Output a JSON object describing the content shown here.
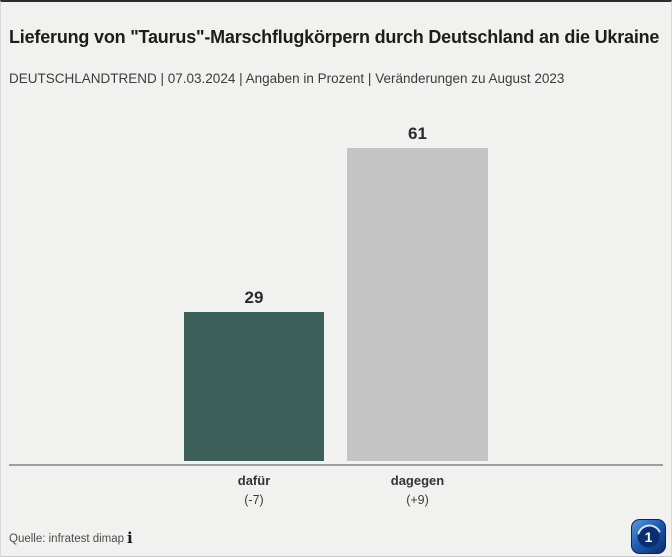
{
  "header": {
    "title": "Lieferung von \"Taurus\"-Marschflugkörpern durch Deutschland an die Ukraine",
    "subtitle": "DEUTSCHLANDTREND | 07.03.2024 | Angaben in Prozent | Veränderungen zu August 2023"
  },
  "chart_data": {
    "type": "bar",
    "title": "Lieferung von \"Taurus\"-Marschflugkörpern durch Deutschland an die Ukraine",
    "categories": [
      "dafür",
      "dagegen"
    ],
    "values": [
      29,
      61
    ],
    "changes": [
      "(-7)",
      "(+9)"
    ],
    "unit": "Prozent",
    "bar_colors": [
      "#3d5f5a",
      "#c4c4c4"
    ],
    "ylim": [
      0,
      70
    ],
    "grid": false,
    "legend": "none",
    "baseline_color": "#9f9f9f"
  },
  "footer": {
    "source": "Quelle: infratest dimap",
    "info_icon": "i"
  },
  "branding": {
    "logo_name": "ARD",
    "logo_text": "1",
    "logo_color": "#0b2f6e"
  },
  "colors": {
    "background": "#f1f1ef",
    "top_border": "#2b2b2b",
    "title_text": "#1d1d1b"
  }
}
